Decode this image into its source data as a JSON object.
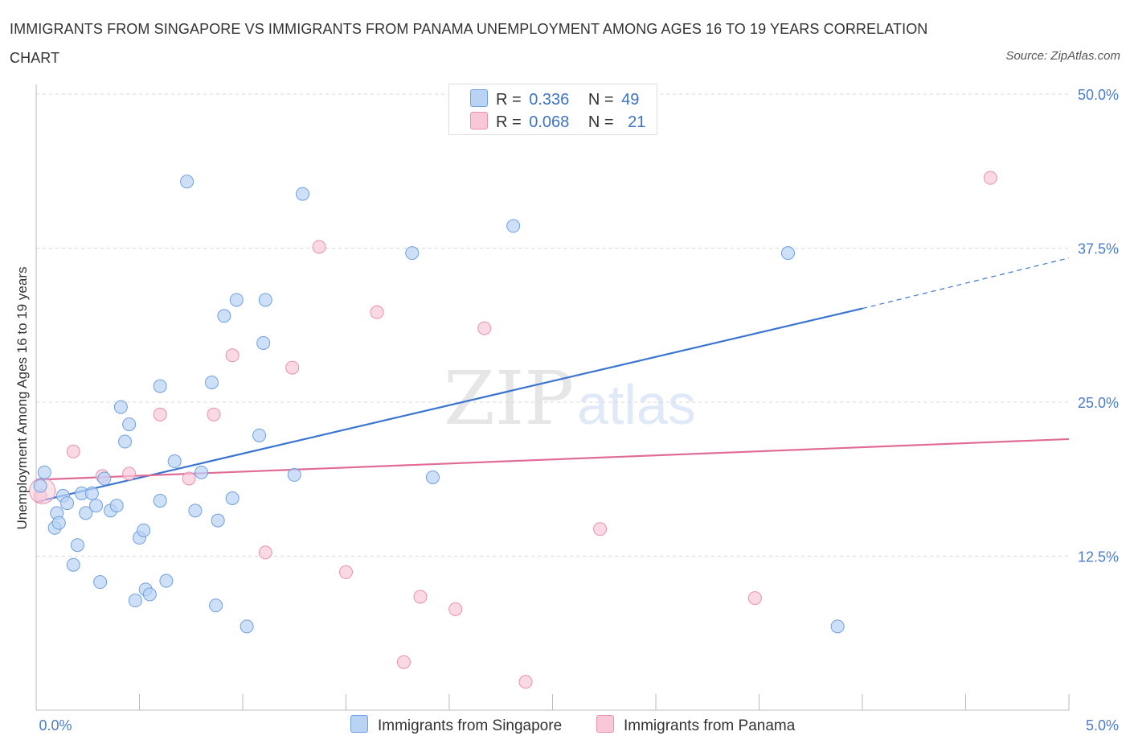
{
  "title": "IMMIGRANTS FROM SINGAPORE VS IMMIGRANTS FROM PANAMA UNEMPLOYMENT AMONG AGES 16 TO 19 YEARS CORRELATION CHART",
  "source": "Source: ZipAtlas.com",
  "watermark": {
    "zip": "ZIP",
    "atlas": "atlas"
  },
  "colors": {
    "singapore_fill": "#b9d3f5",
    "singapore_stroke": "#6f9fdf",
    "singapore_line": "#3a76d0",
    "panama_fill": "#f8c8d8",
    "panama_stroke": "#e891b0",
    "panama_line": "#e06b96",
    "grid": "#d8d8d8",
    "tick_text": "#4a7cc9"
  },
  "legend": {
    "rows": [
      {
        "r_label": "R =",
        "r_value": "0.336",
        "n_label": "N =",
        "n_value": "49"
      },
      {
        "r_label": "R =",
        "r_value": "0.068",
        "n_label": "N =",
        "n_value": "21"
      }
    ]
  },
  "chart_data": {
    "type": "scatter",
    "title": "IMMIGRANTS FROM SINGAPORE VS IMMIGRANTS FROM PANAMA UNEMPLOYMENT AMONG AGES 16 TO 19 YEARS CORRELATION CHART",
    "xlabel": "",
    "ylabel": "Unemployment Among Ages 16 to 19 years",
    "xlim": [
      0,
      5
    ],
    "ylim": [
      0,
      50
    ],
    "x_tick_labels": [
      "0.0%",
      "5.0%"
    ],
    "y_ticks": [
      12.5,
      25.0,
      37.5,
      50.0
    ],
    "y_tick_labels": [
      "12.5%",
      "25.0%",
      "37.5%",
      "50.0%"
    ],
    "grid": true,
    "legend_position": "top-center",
    "series": [
      {
        "name": "Immigrants from Singapore",
        "r": 0.336,
        "n": 49,
        "trend": {
          "x0": 0.0,
          "y0": 16.9,
          "x1": 4.0,
          "y1": 32.6,
          "dashed_to_x": 5.0,
          "dashed_to_y": 36.7
        },
        "points": [
          [
            0.04,
            19.3
          ],
          [
            0.02,
            18.2
          ],
          [
            0.09,
            14.8
          ],
          [
            0.1,
            16.0
          ],
          [
            0.11,
            15.2
          ],
          [
            0.13,
            17.4
          ],
          [
            0.15,
            16.8
          ],
          [
            0.18,
            11.8
          ],
          [
            0.2,
            13.4
          ],
          [
            0.22,
            17.6
          ],
          [
            0.24,
            16.0
          ],
          [
            0.27,
            17.6
          ],
          [
            0.29,
            16.6
          ],
          [
            0.31,
            10.4
          ],
          [
            0.33,
            18.8
          ],
          [
            0.36,
            16.2
          ],
          [
            0.39,
            16.6
          ],
          [
            0.41,
            24.6
          ],
          [
            0.43,
            21.8
          ],
          [
            0.45,
            23.2
          ],
          [
            0.48,
            8.9
          ],
          [
            0.5,
            14.0
          ],
          [
            0.52,
            14.6
          ],
          [
            0.53,
            9.8
          ],
          [
            0.55,
            9.4
          ],
          [
            0.6,
            17.0
          ],
          [
            0.6,
            26.3
          ],
          [
            0.63,
            10.5
          ],
          [
            0.67,
            20.2
          ],
          [
            0.73,
            42.9
          ],
          [
            0.77,
            16.2
          ],
          [
            0.8,
            19.3
          ],
          [
            0.85,
            26.6
          ],
          [
            0.87,
            8.5
          ],
          [
            0.88,
            15.4
          ],
          [
            0.91,
            32.0
          ],
          [
            0.95,
            17.2
          ],
          [
            0.97,
            33.3
          ],
          [
            1.02,
            6.8
          ],
          [
            1.08,
            22.3
          ],
          [
            1.1,
            29.8
          ],
          [
            1.11,
            33.3
          ],
          [
            1.25,
            19.1
          ],
          [
            1.29,
            41.9
          ],
          [
            1.82,
            37.1
          ],
          [
            1.92,
            18.9
          ],
          [
            2.31,
            39.3
          ],
          [
            3.64,
            37.1
          ],
          [
            3.88,
            6.8
          ]
        ]
      },
      {
        "name": "Immigrants from Panama",
        "r": 0.068,
        "n": 21,
        "trend": {
          "x0": 0.0,
          "y0": 18.7,
          "x1": 5.0,
          "y1": 22.0
        },
        "points": [
          [
            0.02,
            17.4
          ],
          [
            0.18,
            21.0
          ],
          [
            0.32,
            19.0
          ],
          [
            0.45,
            19.2
          ],
          [
            0.6,
            24.0
          ],
          [
            0.74,
            18.8
          ],
          [
            0.86,
            24.0
          ],
          [
            0.95,
            28.8
          ],
          [
            1.11,
            12.8
          ],
          [
            1.24,
            27.8
          ],
          [
            1.37,
            37.6
          ],
          [
            1.5,
            11.2
          ],
          [
            1.65,
            32.3
          ],
          [
            1.78,
            3.9
          ],
          [
            1.86,
            9.2
          ],
          [
            2.03,
            8.2
          ],
          [
            2.17,
            31.0
          ],
          [
            2.37,
            2.3
          ],
          [
            2.73,
            14.7
          ],
          [
            3.48,
            9.1
          ],
          [
            4.62,
            43.2
          ]
        ]
      }
    ]
  }
}
